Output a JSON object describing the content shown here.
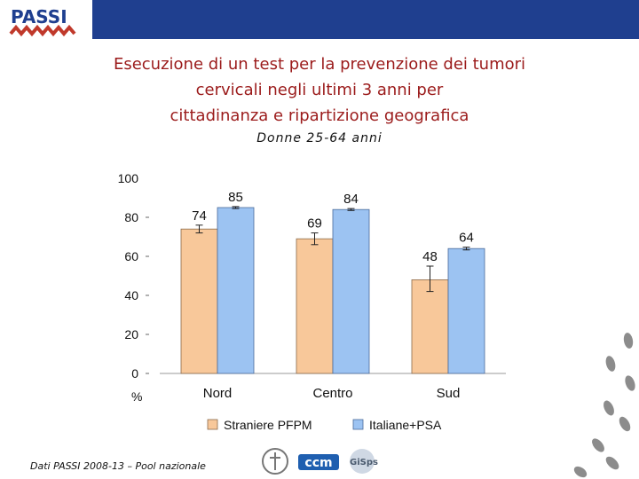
{
  "header": {
    "logo_text": "PASSI",
    "title_lines": [
      "Esecuzione di un test per la prevenzione dei tumori",
      "cervicali negli ultimi 3 anni per",
      "cittadinanza e ripartizione geografica"
    ],
    "subtitle": "Donne 25-64 anni"
  },
  "colors": {
    "header_bar": "#1f3f8f",
    "title": "#9b1b1b",
    "series_a": "#f8c89a",
    "series_b": "#9cc3f2",
    "footprints": "#8c8c8c"
  },
  "chart_data": {
    "type": "bar",
    "categories": [
      "Nord",
      "Centro",
      "Sud"
    ],
    "series": [
      {
        "name": "Straniere PFPM",
        "values": [
          74,
          69,
          48
        ],
        "error_low": [
          72,
          66,
          42
        ],
        "error_high": [
          76,
          72,
          55
        ]
      },
      {
        "name": "Italiane+PSA",
        "values": [
          85,
          84,
          64
        ],
        "error_low": [
          84.5,
          83.5,
          63.3
        ],
        "error_high": [
          85.5,
          84.5,
          64.7
        ]
      }
    ],
    "ylim": [
      0,
      100
    ],
    "yticks": [
      0,
      20,
      40,
      60,
      80,
      100
    ],
    "ylabel": "%",
    "legend_position": "bottom"
  },
  "footer": {
    "source": "Dati PASSI 2008-13 – Pool nazionale",
    "partner_logos": [
      "ccm",
      "GiSps"
    ]
  }
}
